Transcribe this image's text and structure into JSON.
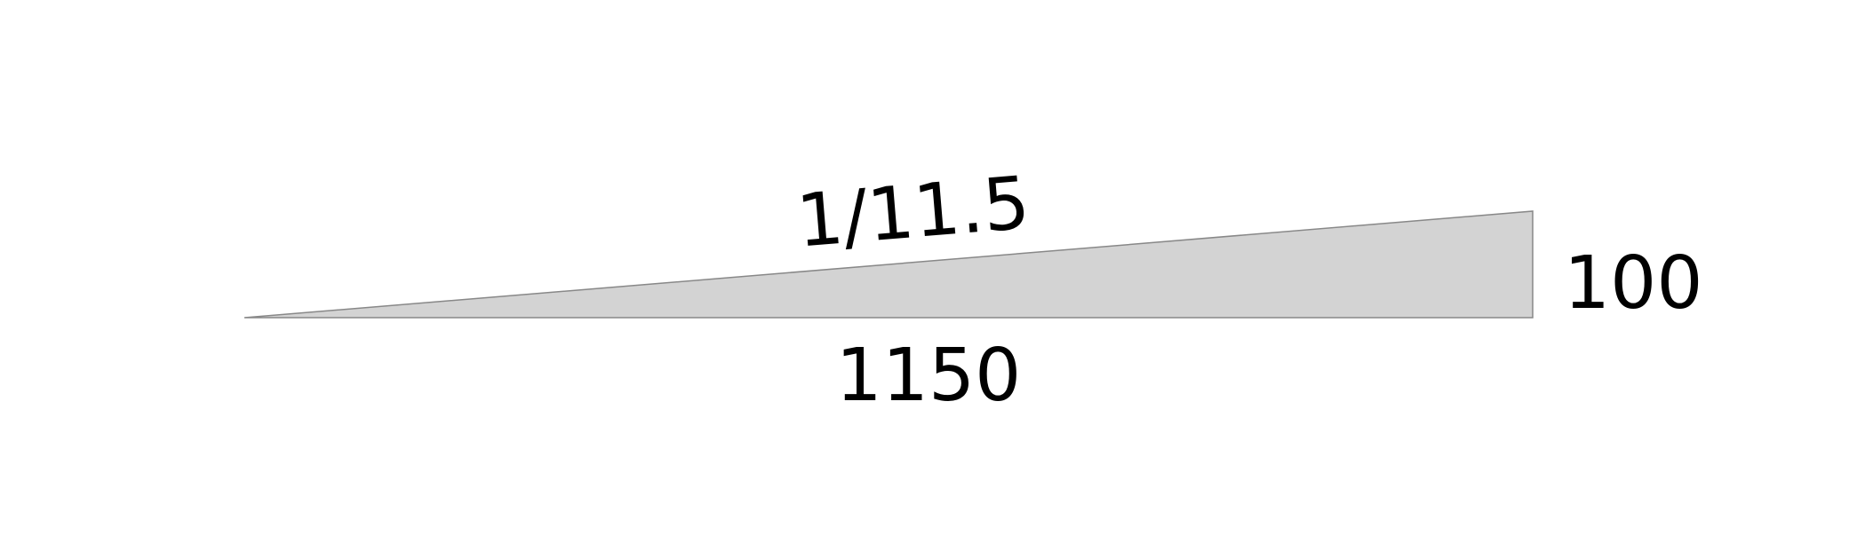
{
  "diagram": {
    "slope_label": "1/11.5",
    "base_label": "1150",
    "height_label": "100",
    "fill_color": "#d3d3d3",
    "stroke_color": "#888888"
  }
}
